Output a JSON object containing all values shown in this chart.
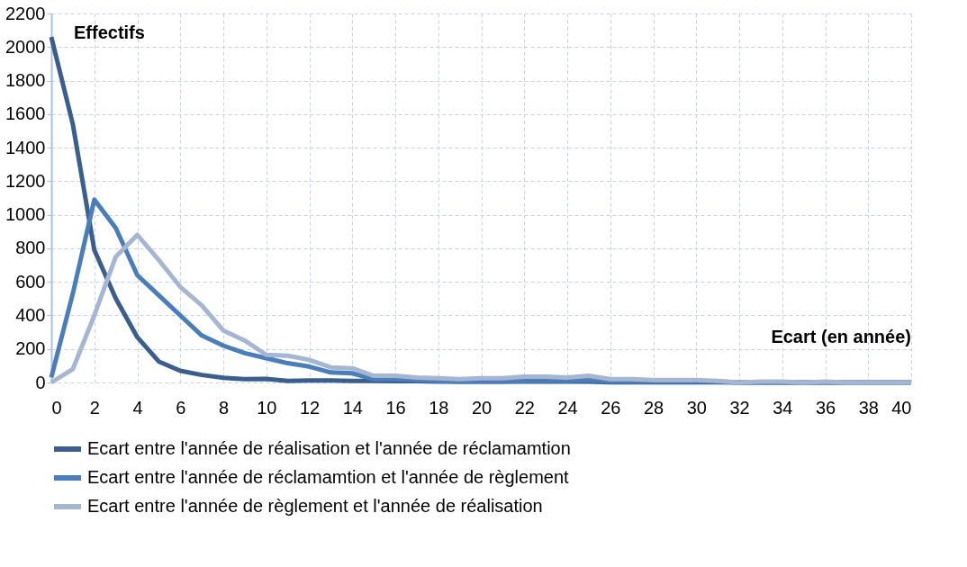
{
  "chart_data": {
    "type": "line",
    "xlabel": "Ecart (en année)",
    "ylabel": "Effectifs",
    "x": [
      0,
      1,
      2,
      3,
      4,
      5,
      6,
      7,
      8,
      9,
      10,
      11,
      12,
      13,
      14,
      15,
      16,
      17,
      18,
      19,
      20,
      21,
      22,
      23,
      24,
      25,
      26,
      27,
      28,
      29,
      30,
      31,
      32,
      33,
      34,
      35,
      36,
      37,
      38,
      39,
      40
    ],
    "series": [
      {
        "name": "Ecart entre l'année de réalisation et l'année de réclamamtion",
        "color": "#3a5f8f",
        "values": [
          2060,
          1540,
          790,
          500,
          270,
          125,
          70,
          45,
          28,
          20,
          22,
          10,
          12,
          12,
          10,
          10,
          8,
          8,
          5,
          5,
          5,
          5,
          5,
          5,
          5,
          5,
          2,
          2,
          2,
          2,
          2,
          2,
          0,
          0,
          0,
          0,
          0,
          0,
          0,
          0,
          0
        ]
      },
      {
        "name": "Ecart entre l'année de réclamamtion et l'année de règlement",
        "color": "#4a7ebb",
        "values": [
          30,
          530,
          1090,
          920,
          640,
          520,
          400,
          280,
          220,
          175,
          145,
          115,
          95,
          60,
          55,
          20,
          20,
          15,
          10,
          5,
          5,
          5,
          10,
          10,
          10,
          15,
          5,
          5,
          5,
          5,
          5,
          5,
          0,
          0,
          0,
          0,
          0,
          0,
          0,
          0,
          0
        ]
      },
      {
        "name": "Ecart entre l'année de règlement et l'année de réalisation",
        "color": "#a5b6d3",
        "values": [
          0,
          80,
          400,
          750,
          880,
          730,
          570,
          460,
          310,
          250,
          165,
          160,
          135,
          90,
          85,
          40,
          40,
          30,
          25,
          20,
          25,
          25,
          35,
          35,
          30,
          40,
          20,
          20,
          15,
          15,
          15,
          10,
          0,
          5,
          5,
          0,
          5,
          0,
          0,
          0,
          0
        ]
      }
    ],
    "xlim": [
      0,
      40
    ],
    "xticks": [
      0,
      2,
      4,
      6,
      8,
      10,
      12,
      14,
      16,
      18,
      20,
      22,
      24,
      26,
      28,
      30,
      32,
      34,
      36,
      38,
      40
    ],
    "ylim": [
      0,
      2200
    ],
    "yticks": [
      0,
      200,
      400,
      600,
      800,
      1000,
      1200,
      1400,
      1600,
      1800,
      2000,
      2200
    ],
    "grid": true,
    "legend": "bottom",
    "marker": "none",
    "line_style": "solid"
  }
}
